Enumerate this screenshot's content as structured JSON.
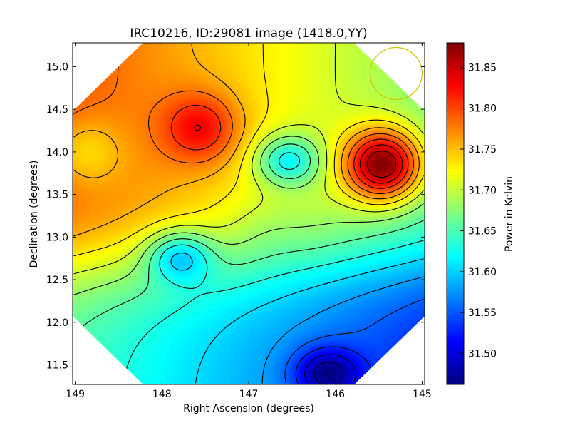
{
  "chart_data": {
    "type": "heatmap",
    "title": "IRC10216, ID:29081 image (1418.0,YY)",
    "xlabel": "Right Ascension (degrees)",
    "ylabel": "Declination (degrees)",
    "xlim": [
      149.03,
      144.97
    ],
    "ylim": [
      11.27,
      15.28
    ],
    "x_axis_inverted": true,
    "x_ticks": [
      149,
      148,
      147,
      146,
      145
    ],
    "x_tick_labels": [
      "149",
      "148",
      "147",
      "146",
      "145"
    ],
    "y_ticks": [
      11.5,
      12.0,
      12.5,
      13.0,
      13.5,
      14.0,
      14.5,
      15.0
    ],
    "y_tick_labels": [
      "11.5",
      "12.0",
      "12.5",
      "13.0",
      "13.5",
      "14.0",
      "14.5",
      "15.0"
    ],
    "colorbar": {
      "label": "Power in Kelvin",
      "range": [
        31.462,
        31.88
      ],
      "colormap": "jet",
      "ticks": [
        31.5,
        31.55,
        31.6,
        31.65,
        31.7,
        31.75,
        31.8,
        31.85
      ],
      "tick_labels": [
        "31.50",
        "31.55",
        "31.60",
        "31.65",
        "31.70",
        "31.75",
        "31.80",
        "31.85"
      ]
    },
    "contours": true,
    "contour_color": "#000000",
    "map_mask": "octagon",
    "features": [
      {
        "kind": "max",
        "ra": 145.45,
        "dec": 13.85,
        "value": 31.88
      },
      {
        "kind": "max",
        "ra": 147.55,
        "dec": 14.28,
        "value": 31.83
      },
      {
        "kind": "max",
        "ra": 148.9,
        "dec": 14.0,
        "value": 31.74
      },
      {
        "kind": "min",
        "ra": 147.8,
        "dec": 12.78,
        "value": 31.6
      },
      {
        "kind": "min",
        "ra": 146.55,
        "dec": 13.9,
        "value": 31.62
      },
      {
        "kind": "max",
        "ra": 146.8,
        "dec": 13.12,
        "value": 31.685
      },
      {
        "kind": "min",
        "ra": 146.1,
        "dec": 11.4,
        "value": 31.462
      }
    ],
    "beam_marker": {
      "ra": 145.3,
      "dec": 14.92,
      "radius_deg": 0.3,
      "color": "#c8c800"
    }
  }
}
